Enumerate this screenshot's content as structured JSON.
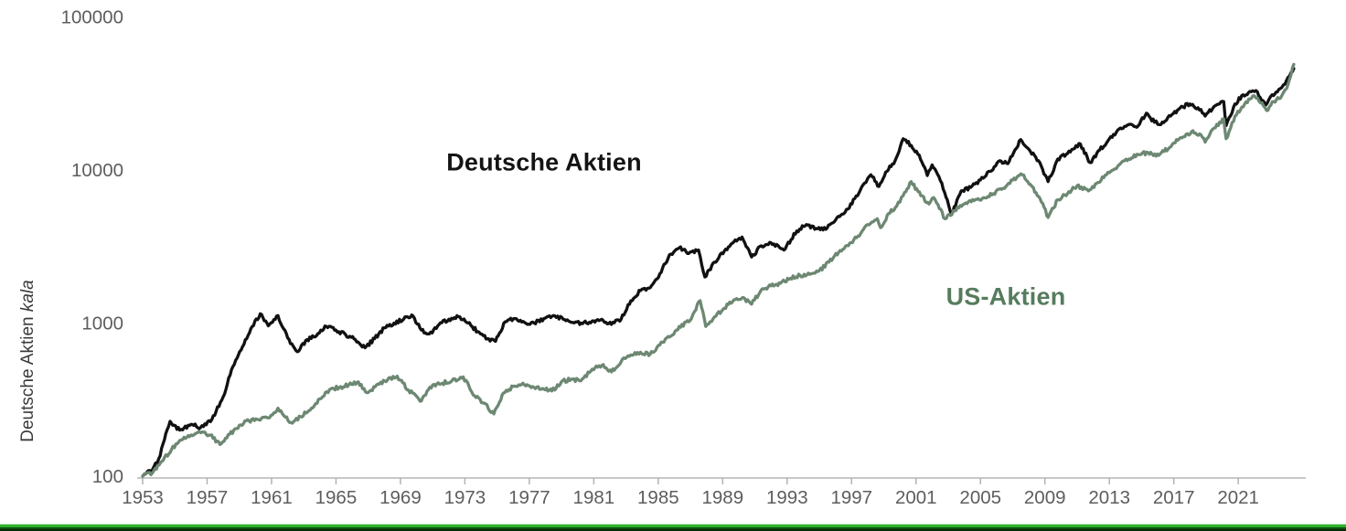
{
  "chart_data": {
    "type": "line",
    "title": "",
    "xlabel": "",
    "ylabel_prefix": "Deutsche Aktien ",
    "ylabel_italic": "kala",
    "scale": "log-y",
    "x_ticks": [
      1953,
      1957,
      1961,
      1965,
      1969,
      1973,
      1977,
      1981,
      1985,
      1989,
      1993,
      1997,
      2001,
      2005,
      2009,
      2013,
      2017,
      2021
    ],
    "y_ticks": [
      100,
      1000,
      10000,
      100000
    ],
    "y_tick_labels": [
      "100",
      "1000",
      "10000",
      "100000"
    ],
    "xlim": [
      1953,
      2024.6
    ],
    "ylim": [
      100,
      100000
    ],
    "grid": "off",
    "legend": "inline-annotations",
    "axis_color": "#c8c8c8",
    "tick_label_color": "#5d5d5d",
    "series": [
      {
        "name": "Deutsche Aktien",
        "color": "#111111",
        "label_color": "#141414",
        "points": [
          [
            1953.0,
            100
          ],
          [
            1953.6,
            110
          ],
          [
            1954.0,
            130
          ],
          [
            1954.7,
            228
          ],
          [
            1955.3,
            200
          ],
          [
            1956.0,
            218
          ],
          [
            1956.6,
            208
          ],
          [
            1957.3,
            235
          ],
          [
            1958.0,
            330
          ],
          [
            1958.6,
            520
          ],
          [
            1959.2,
            700
          ],
          [
            1959.8,
            950
          ],
          [
            1960.3,
            1150
          ],
          [
            1960.8,
            960
          ],
          [
            1961.4,
            1120
          ],
          [
            1962.0,
            800
          ],
          [
            1962.6,
            650
          ],
          [
            1963.2,
            780
          ],
          [
            1963.8,
            830
          ],
          [
            1964.4,
            950
          ],
          [
            1965.0,
            900
          ],
          [
            1965.6,
            840
          ],
          [
            1966.2,
            780
          ],
          [
            1966.8,
            690
          ],
          [
            1967.4,
            790
          ],
          [
            1968.0,
            930
          ],
          [
            1968.6,
            1000
          ],
          [
            1969.2,
            1060
          ],
          [
            1969.7,
            1130
          ],
          [
            1970.3,
            900
          ],
          [
            1970.8,
            850
          ],
          [
            1971.4,
            980
          ],
          [
            1972.0,
            1060
          ],
          [
            1972.6,
            1100
          ],
          [
            1973.2,
            1000
          ],
          [
            1973.8,
            880
          ],
          [
            1974.4,
            790
          ],
          [
            1974.9,
            760
          ],
          [
            1975.5,
            1020
          ],
          [
            1976.1,
            1070
          ],
          [
            1976.7,
            1010
          ],
          [
            1977.3,
            1000
          ],
          [
            1977.9,
            1070
          ],
          [
            1978.5,
            1120
          ],
          [
            1979.1,
            1060
          ],
          [
            1979.7,
            1010
          ],
          [
            1980.3,
            990
          ],
          [
            1980.9,
            1030
          ],
          [
            1981.5,
            1060
          ],
          [
            1982.1,
            980
          ],
          [
            1982.7,
            1060
          ],
          [
            1983.3,
            1400
          ],
          [
            1983.9,
            1630
          ],
          [
            1984.5,
            1700
          ],
          [
            1985.1,
            2100
          ],
          [
            1985.7,
            2800
          ],
          [
            1986.3,
            3100
          ],
          [
            1986.9,
            2850
          ],
          [
            1987.5,
            3000
          ],
          [
            1987.9,
            2000
          ],
          [
            1988.5,
            2500
          ],
          [
            1989.1,
            2950
          ],
          [
            1989.7,
            3400
          ],
          [
            1990.2,
            3650
          ],
          [
            1990.8,
            2700
          ],
          [
            1991.4,
            3200
          ],
          [
            1992.0,
            3350
          ],
          [
            1992.8,
            3000
          ],
          [
            1993.6,
            4000
          ],
          [
            1994.2,
            4400
          ],
          [
            1994.8,
            4150
          ],
          [
            1995.4,
            4100
          ],
          [
            1996.0,
            4700
          ],
          [
            1996.6,
            5300
          ],
          [
            1997.2,
            6500
          ],
          [
            1997.8,
            8200
          ],
          [
            1998.2,
            9300
          ],
          [
            1998.7,
            7800
          ],
          [
            1999.2,
            9800
          ],
          [
            1999.7,
            11500
          ],
          [
            2000.2,
            16000
          ],
          [
            2000.7,
            14500
          ],
          [
            2001.2,
            12500
          ],
          [
            2001.7,
            9200
          ],
          [
            2002.0,
            10800
          ],
          [
            2002.6,
            8200
          ],
          [
            2003.2,
            5100
          ],
          [
            2003.8,
            7300
          ],
          [
            2004.4,
            7700
          ],
          [
            2005.0,
            8600
          ],
          [
            2005.6,
            9800
          ],
          [
            2006.2,
            11500
          ],
          [
            2006.7,
            11000
          ],
          [
            2007.5,
            15800
          ],
          [
            2008.1,
            13200
          ],
          [
            2008.6,
            11500
          ],
          [
            2009.2,
            8400
          ],
          [
            2009.8,
            11800
          ],
          [
            2010.4,
            12800
          ],
          [
            2011.2,
            14800
          ],
          [
            2011.8,
            11200
          ],
          [
            2012.4,
            13500
          ],
          [
            2013.0,
            16000
          ],
          [
            2013.6,
            18500
          ],
          [
            2014.2,
            19800
          ],
          [
            2014.7,
            19000
          ],
          [
            2015.3,
            23500
          ],
          [
            2015.8,
            20500
          ],
          [
            2016.2,
            19800
          ],
          [
            2016.8,
            22500
          ],
          [
            2017.4,
            25500
          ],
          [
            2018.0,
            27000
          ],
          [
            2018.5,
            25500
          ],
          [
            2018.95,
            22500
          ],
          [
            2019.5,
            26000
          ],
          [
            2020.1,
            28000
          ],
          [
            2020.25,
            19500
          ],
          [
            2020.8,
            27000
          ],
          [
            2021.3,
            31000
          ],
          [
            2021.8,
            32500
          ],
          [
            2022.1,
            33000
          ],
          [
            2022.7,
            26500
          ],
          [
            2023.1,
            31000
          ],
          [
            2023.6,
            34000
          ],
          [
            2024.0,
            38500
          ],
          [
            2024.45,
            46000
          ]
        ]
      },
      {
        "name": "US-Aktien",
        "color": "#6d8872",
        "label_color": "#567c5d",
        "points": [
          [
            1953.0,
            100
          ],
          [
            1953.6,
            105
          ],
          [
            1954.2,
            125
          ],
          [
            1954.8,
            150
          ],
          [
            1955.4,
            172
          ],
          [
            1956.0,
            186
          ],
          [
            1956.6,
            192
          ],
          [
            1957.2,
            185
          ],
          [
            1957.8,
            161
          ],
          [
            1958.4,
            188
          ],
          [
            1959.0,
            215
          ],
          [
            1959.6,
            230
          ],
          [
            1960.2,
            234
          ],
          [
            1960.8,
            240
          ],
          [
            1961.4,
            278
          ],
          [
            1962.2,
            224
          ],
          [
            1962.8,
            245
          ],
          [
            1963.4,
            270
          ],
          [
            1964.0,
            320
          ],
          [
            1964.6,
            368
          ],
          [
            1965.2,
            380
          ],
          [
            1965.8,
            395
          ],
          [
            1966.3,
            410
          ],
          [
            1967.0,
            352
          ],
          [
            1967.6,
            400
          ],
          [
            1968.2,
            425
          ],
          [
            1968.8,
            450
          ],
          [
            1969.5,
            365
          ],
          [
            1970.3,
            310
          ],
          [
            1971.0,
            395
          ],
          [
            1971.6,
            405
          ],
          [
            1972.2,
            420
          ],
          [
            1972.9,
            445
          ],
          [
            1973.6,
            335
          ],
          [
            1974.2,
            300
          ],
          [
            1974.8,
            255
          ],
          [
            1975.4,
            350
          ],
          [
            1976.0,
            385
          ],
          [
            1976.6,
            405
          ],
          [
            1977.2,
            385
          ],
          [
            1977.9,
            370
          ],
          [
            1978.4,
            360
          ],
          [
            1979.0,
            415
          ],
          [
            1979.6,
            430
          ],
          [
            1980.2,
            420
          ],
          [
            1980.9,
            500
          ],
          [
            1981.5,
            530
          ],
          [
            1982.1,
            480
          ],
          [
            1982.7,
            560
          ],
          [
            1983.3,
            620
          ],
          [
            1983.9,
            645
          ],
          [
            1984.5,
            625
          ],
          [
            1985.1,
            720
          ],
          [
            1985.7,
            810
          ],
          [
            1986.3,
            950
          ],
          [
            1986.9,
            1020
          ],
          [
            1987.6,
            1400
          ],
          [
            1987.95,
            950
          ],
          [
            1988.5,
            1100
          ],
          [
            1989.1,
            1250
          ],
          [
            1989.7,
            1420
          ],
          [
            1990.2,
            1460
          ],
          [
            1990.8,
            1330
          ],
          [
            1991.4,
            1650
          ],
          [
            1992.0,
            1750
          ],
          [
            1992.6,
            1820
          ],
          [
            1993.2,
            1960
          ],
          [
            1993.8,
            2050
          ],
          [
            1994.4,
            2080
          ],
          [
            1995.0,
            2200
          ],
          [
            1995.6,
            2500
          ],
          [
            1996.2,
            2900
          ],
          [
            1996.8,
            3200
          ],
          [
            1997.4,
            3700
          ],
          [
            1998.0,
            4400
          ],
          [
            1998.6,
            4800
          ],
          [
            1998.8,
            4200
          ],
          [
            1999.3,
            5200
          ],
          [
            1999.8,
            5800
          ],
          [
            2000.2,
            6800
          ],
          [
            2000.7,
            8400
          ],
          [
            2001.3,
            6800
          ],
          [
            2001.8,
            6000
          ],
          [
            2002.1,
            6600
          ],
          [
            2002.8,
            4800
          ],
          [
            2003.4,
            5400
          ],
          [
            2004.0,
            6000
          ],
          [
            2004.6,
            6300
          ],
          [
            2005.2,
            6600
          ],
          [
            2005.8,
            7000
          ],
          [
            2006.4,
            7600
          ],
          [
            2007.0,
            8600
          ],
          [
            2007.6,
            9300
          ],
          [
            2008.2,
            7800
          ],
          [
            2008.7,
            6500
          ],
          [
            2009.2,
            4900
          ],
          [
            2009.8,
            6400
          ],
          [
            2010.4,
            7000
          ],
          [
            2011.0,
            7900
          ],
          [
            2011.7,
            7300
          ],
          [
            2012.3,
            8300
          ],
          [
            2013.0,
            9600
          ],
          [
            2013.6,
            10800
          ],
          [
            2014.2,
            11800
          ],
          [
            2014.8,
            12600
          ],
          [
            2015.4,
            13000
          ],
          [
            2015.9,
            12300
          ],
          [
            2016.4,
            13200
          ],
          [
            2017.0,
            15000
          ],
          [
            2017.6,
            16500
          ],
          [
            2018.1,
            17800
          ],
          [
            2018.6,
            17200
          ],
          [
            2018.95,
            15200
          ],
          [
            2019.5,
            18800
          ],
          [
            2020.1,
            21500
          ],
          [
            2020.25,
            16000
          ],
          [
            2020.8,
            22500
          ],
          [
            2021.4,
            27000
          ],
          [
            2021.9,
            30500
          ],
          [
            2022.2,
            29500
          ],
          [
            2022.75,
            24500
          ],
          [
            2023.2,
            28000
          ],
          [
            2023.7,
            30500
          ],
          [
            2024.0,
            34000
          ],
          [
            2024.45,
            49000
          ]
        ]
      }
    ],
    "annotations": [
      {
        "text": "Deutsche Aktien",
        "color": "#141414"
      },
      {
        "text": "US-Aktien",
        "color": "#567c5d"
      }
    ],
    "bottom_bar_colors": [
      "#b7e6b7",
      "#2fb22f",
      "#0e4f0e",
      "#052b05"
    ]
  }
}
